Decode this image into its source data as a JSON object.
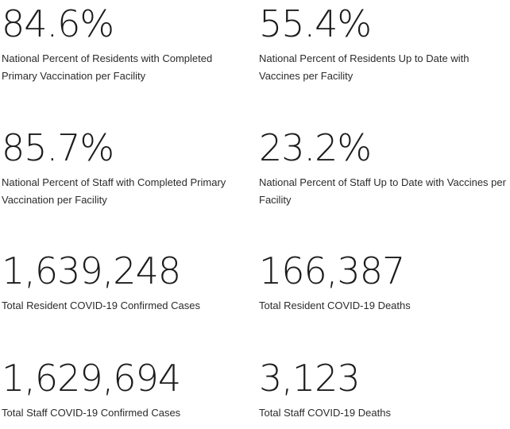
{
  "stats": [
    {
      "value": "84.6%",
      "label": "National Percent of Residents with Completed Primary Vaccination per Facility"
    },
    {
      "value": "55.4%",
      "label": "National Percent of Residents Up to Date with Vaccines per Facility"
    },
    {
      "value": "85.7%",
      "label": "National Percent of Staff with Completed Primary Vaccination per Facility"
    },
    {
      "value": "23.2%",
      "label": "National Percent of Staff Up to Date with Vaccines per Facility"
    },
    {
      "value": "1,639,248",
      "label": "Total Resident COVID-19 Confirmed Cases"
    },
    {
      "value": "166,387",
      "label": "Total Resident COVID-19 Deaths"
    },
    {
      "value": "1,629,694",
      "label": "Total Staff COVID-19 Confirmed Cases"
    },
    {
      "value": "3,123",
      "label": "Total Staff COVID-19 Deaths"
    }
  ]
}
